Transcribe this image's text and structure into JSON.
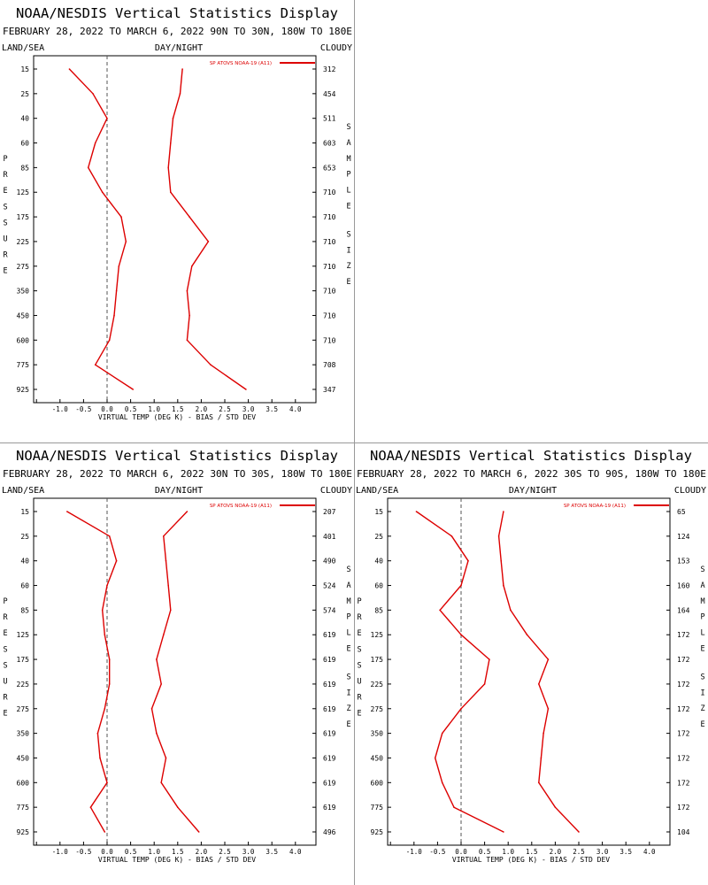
{
  "chart_data": [
    {
      "type": "line",
      "title": "NOAA/NESDIS Vertical Statistics Display",
      "subtitle": "FEBRUARY 28, 2022 TO MARCH 6, 2022 90N TO 30N, 180W TO 180E",
      "labels": {
        "left": "LAND/SEA",
        "center": "DAY/NIGHT",
        "right": "CLOUDY"
      },
      "xlabel": "VIRTUAL TEMP (DEG K) - BIAS / STD DEV",
      "ylabel": "PRESSURE",
      "right_axis_label": "SAMPLE SIZE",
      "legend": "SP ATOVS NOAA-19 (A11)",
      "xlim": [
        -1.5,
        4.5
      ],
      "xticks": [
        "-1.0",
        "-0.5",
        "0.0",
        "0.5",
        "1.0",
        "1.5",
        "2.0",
        "2.5",
        "3.0",
        "3.5",
        "4.0"
      ],
      "pressure_levels": [
        "15",
        "25",
        "40",
        "60",
        "85",
        "125",
        "175",
        "225",
        "275",
        "350",
        "450",
        "600",
        "775",
        "925"
      ],
      "sample_size": [
        "312",
        "454",
        "511",
        "603",
        "653",
        "710",
        "710",
        "710",
        "710",
        "710",
        "710",
        "710",
        "708",
        "347"
      ],
      "series": [
        {
          "values": [
            -0.8,
            -0.3,
            0.0,
            -0.25,
            -0.4,
            -0.1,
            0.3,
            0.4,
            0.25,
            0.2,
            0.15,
            0.05,
            -0.25,
            0.55
          ]
        },
        {
          "values": [
            1.6,
            1.55,
            1.4,
            1.35,
            1.3,
            1.35,
            1.75,
            2.15,
            1.8,
            1.7,
            1.75,
            1.7,
            2.2,
            2.95
          ]
        }
      ]
    },
    {
      "type": "line",
      "title": "NOAA/NESDIS Vertical Statistics Display",
      "subtitle": "FEBRUARY 28, 2022 TO MARCH 6, 2022 30N TO 30S, 180W TO 180E",
      "labels": {
        "left": "LAND/SEA",
        "center": "DAY/NIGHT",
        "right": "CLOUDY"
      },
      "xlabel": "VIRTUAL TEMP (DEG K) - BIAS / STD DEV",
      "ylabel": "PRESSURE",
      "right_axis_label": "SAMPLE SIZE",
      "legend": "SP ATOVS NOAA-19 (A11)",
      "xlim": [
        -1.5,
        4.5
      ],
      "xticks": [
        "-1.0",
        "-0.5",
        "0.0",
        "0.5",
        "1.0",
        "1.5",
        "2.0",
        "2.5",
        "3.0",
        "3.5",
        "4.0"
      ],
      "pressure_levels": [
        "15",
        "25",
        "40",
        "60",
        "85",
        "125",
        "175",
        "225",
        "275",
        "350",
        "450",
        "600",
        "775",
        "925"
      ],
      "sample_size": [
        "207",
        "401",
        "490",
        "524",
        "574",
        "619",
        "619",
        "619",
        "619",
        "619",
        "619",
        "619",
        "619",
        "496"
      ],
      "series": [
        {
          "values": [
            -0.85,
            0.05,
            0.2,
            0.0,
            -0.1,
            -0.05,
            0.05,
            0.05,
            -0.05,
            -0.2,
            -0.15,
            0.0,
            -0.35,
            -0.05
          ]
        },
        {
          "values": [
            1.7,
            1.2,
            1.25,
            1.3,
            1.35,
            1.2,
            1.05,
            1.15,
            0.95,
            1.05,
            1.25,
            1.15,
            1.5,
            1.95
          ]
        }
      ]
    },
    {
      "type": "line",
      "title": "NOAA/NESDIS Vertical Statistics Display",
      "subtitle": "FEBRUARY 28, 2022 TO MARCH 6, 2022 30S TO 90S, 180W TO 180E",
      "labels": {
        "left": "LAND/SEA",
        "center": "DAY/NIGHT",
        "right": "CLOUDY"
      },
      "xlabel": "VIRTUAL TEMP (DEG K) - BIAS / STD DEV",
      "ylabel": "PRESSURE",
      "right_axis_label": "SAMPLE SIZE",
      "legend": "SP ATOVS NOAA-19 (A11)",
      "xlim": [
        -1.5,
        4.5
      ],
      "xticks": [
        "-1.0",
        "-0.5",
        "0.0",
        "0.5",
        "1.0",
        "1.5",
        "2.0",
        "2.5",
        "3.0",
        "3.5",
        "4.0"
      ],
      "pressure_levels": [
        "15",
        "25",
        "40",
        "60",
        "85",
        "125",
        "175",
        "225",
        "275",
        "350",
        "450",
        "600",
        "775",
        "925"
      ],
      "sample_size": [
        "65",
        "124",
        "153",
        "160",
        "164",
        "172",
        "172",
        "172",
        "172",
        "172",
        "172",
        "172",
        "172",
        "104"
      ],
      "series": [
        {
          "values": [
            -0.95,
            -0.2,
            0.15,
            0.0,
            -0.45,
            0.0,
            0.6,
            0.5,
            0.0,
            -0.4,
            -0.55,
            -0.4,
            -0.15,
            0.9
          ]
        },
        {
          "values": [
            0.9,
            0.8,
            0.85,
            0.9,
            1.05,
            1.4,
            1.85,
            1.65,
            1.85,
            1.75,
            1.7,
            1.65,
            2.0,
            2.5
          ]
        }
      ]
    }
  ],
  "colors": {
    "series": "#dd0000",
    "axis": "#000000",
    "zero_line": "#555555",
    "divider": "#999999"
  }
}
